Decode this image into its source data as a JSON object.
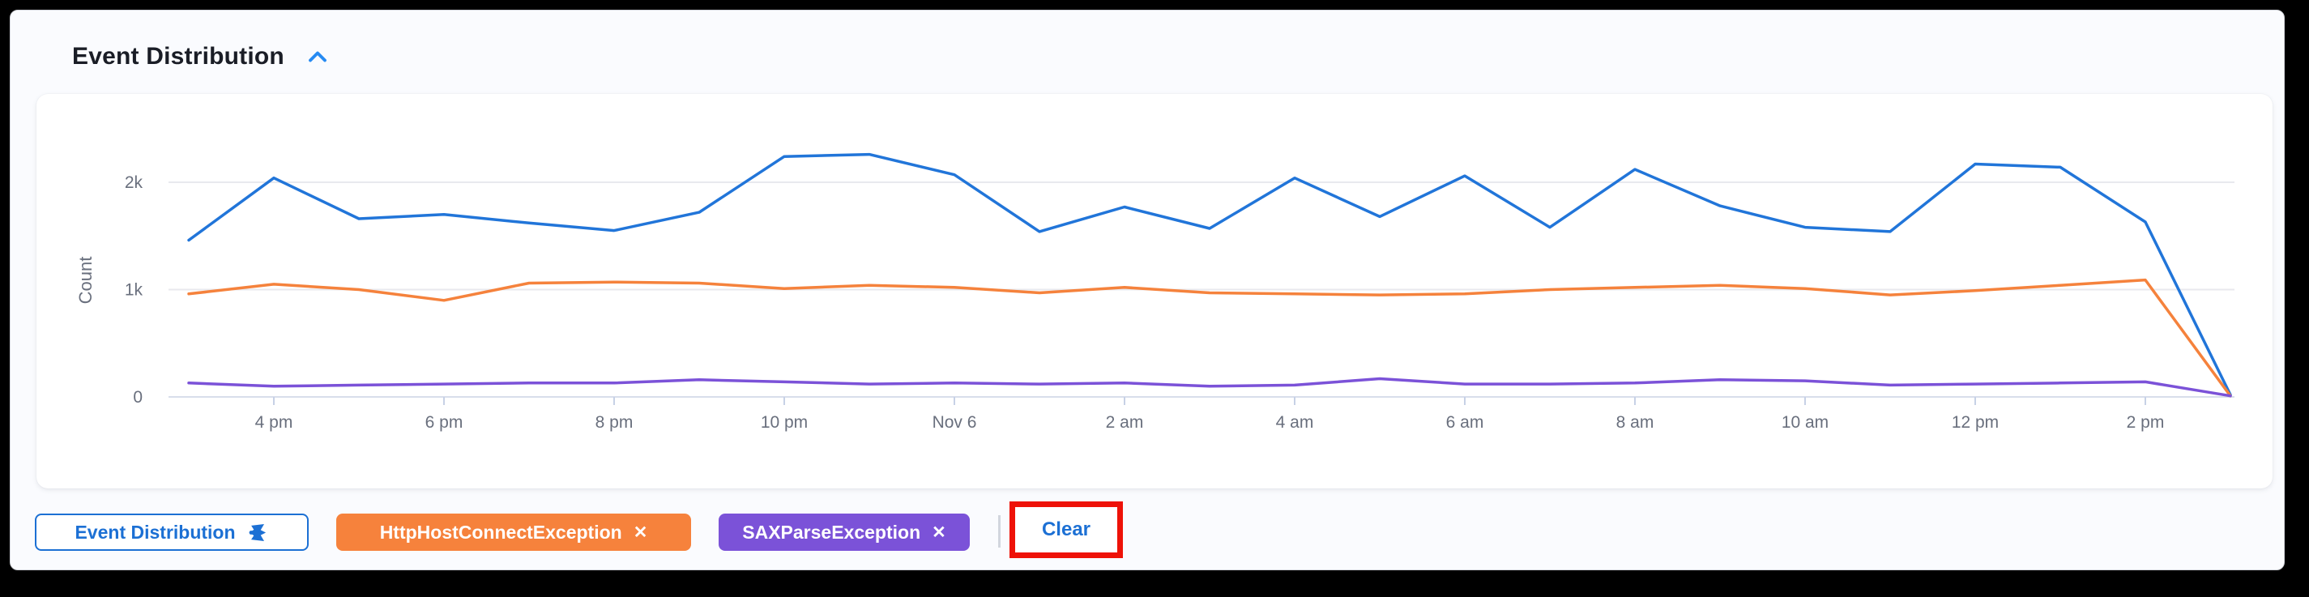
{
  "header": {
    "title": "Event Distribution",
    "accent_color": "#268af2"
  },
  "chart_data": {
    "type": "line",
    "title": "Event Distribution",
    "xlabel": "",
    "ylabel": "Count",
    "ylim": [
      0,
      2400
    ],
    "ytick_labels": [
      "0",
      "1k",
      "2k"
    ],
    "ytick_values": [
      0,
      1000,
      2000
    ],
    "grid": "horizontal",
    "legend_position": "none",
    "x": [
      "3 pm",
      "4 pm",
      "5 pm",
      "6 pm",
      "7 pm",
      "8 pm",
      "9 pm",
      "10 pm",
      "11 pm",
      "Nov 6",
      "1 am",
      "2 am",
      "3 am",
      "4 am",
      "5 am",
      "6 am",
      "7 am",
      "8 am",
      "9 am",
      "10 am",
      "11 am",
      "12 pm",
      "1 pm",
      "2 pm",
      "3 pm"
    ],
    "x_tick_indices": [
      1,
      3,
      5,
      7,
      9,
      11,
      13,
      15,
      17,
      19,
      21,
      23
    ],
    "x_tick_labels": [
      "4 pm",
      "6 pm",
      "8 pm",
      "10 pm",
      "Nov 6",
      "2 am",
      "4 am",
      "6 am",
      "8 am",
      "10 am",
      "12 pm",
      "2 pm"
    ],
    "series": [
      {
        "name": "(unlabeled blue series)",
        "color": "#2175d9",
        "values": [
          1460,
          2040,
          1660,
          1700,
          1620,
          1550,
          1720,
          2240,
          2260,
          2070,
          1540,
          1770,
          1570,
          2040,
          1680,
          2060,
          1580,
          2120,
          1780,
          1580,
          1540,
          2170,
          2140,
          1630,
          20
        ]
      },
      {
        "name": "HttpHostConnectException",
        "color": "#f5823c",
        "values": [
          960,
          1050,
          1000,
          900,
          1060,
          1070,
          1060,
          1010,
          1040,
          1020,
          970,
          1020,
          970,
          960,
          950,
          960,
          1000,
          1020,
          1040,
          1010,
          950,
          990,
          1040,
          1090,
          10
        ]
      },
      {
        "name": "SAXParseException",
        "color": "#7b52d8",
        "values": [
          130,
          100,
          110,
          120,
          130,
          130,
          160,
          140,
          120,
          130,
          120,
          130,
          100,
          110,
          170,
          120,
          120,
          130,
          160,
          150,
          110,
          120,
          130,
          140,
          10
        ]
      }
    ],
    "axis_text_color": "#696f7d",
    "gridline_color": "#e8e9ee",
    "baseline_color": "#d8deeb"
  },
  "filters": {
    "panel_button": {
      "label": "Event Distribution"
    },
    "chips": [
      {
        "label": "HttpHostConnectException",
        "close": "✕",
        "color": "#f6823c"
      },
      {
        "label": "SAXParseException",
        "close": "✕",
        "color": "#7b52d8"
      }
    ],
    "clear_label": "Clear",
    "annotation_color": "#ee1208"
  }
}
